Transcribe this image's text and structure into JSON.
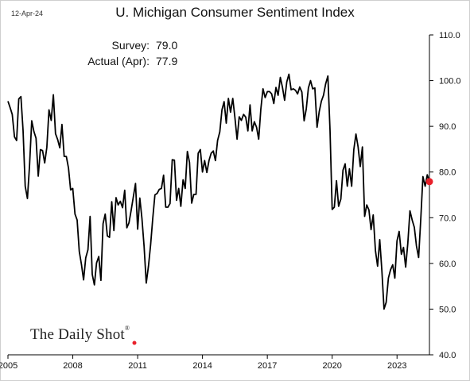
{
  "header": {
    "date": "12-Apr-24",
    "title": "U. Michigan Consumer Sentiment Index"
  },
  "annotations": {
    "survey_label": "Survey:",
    "survey_value": "79.0",
    "actual_label": "Actual (Apr):",
    "actual_value": "77.9"
  },
  "logo": {
    "text": "The Daily Shot",
    "mark": "®"
  },
  "colors": {
    "line": "#000000",
    "marker": "#e8202a",
    "logo_dot": "#e8202a"
  },
  "chart_data": {
    "type": "line",
    "title": "U. Michigan Consumer Sentiment Index",
    "xlabel": "",
    "ylabel": "",
    "ylim": [
      40,
      110
    ],
    "xlim": [
      2005.0,
      2024.5
    ],
    "y_ticks": [
      "40.0",
      "50.0",
      "60.0",
      "70.0",
      "80.0",
      "90.0",
      "100.0",
      "110.0"
    ],
    "x_ticks": [
      "2005",
      "2008",
      "2011",
      "2014",
      "2017",
      "2020",
      "2023"
    ],
    "y_axis_side": "right",
    "grid": false,
    "series": [
      {
        "values": [
          [
            2005.0,
            95.5
          ],
          [
            2005.1,
            94.1
          ],
          [
            2005.2,
            92.6
          ],
          [
            2005.3,
            87.7
          ],
          [
            2005.4,
            86.9
          ],
          [
            2005.5,
            96.0
          ],
          [
            2005.6,
            96.5
          ],
          [
            2005.7,
            89.1
          ],
          [
            2005.8,
            76.9
          ],
          [
            2005.9,
            74.2
          ],
          [
            2006.0,
            81.6
          ],
          [
            2006.1,
            91.2
          ],
          [
            2006.2,
            88.9
          ],
          [
            2006.3,
            87.4
          ],
          [
            2006.4,
            79.1
          ],
          [
            2006.5,
            84.9
          ],
          [
            2006.6,
            84.7
          ],
          [
            2006.7,
            82.0
          ],
          [
            2006.8,
            85.4
          ],
          [
            2006.9,
            93.6
          ],
          [
            2007.0,
            91.3
          ],
          [
            2007.1,
            96.9
          ],
          [
            2007.2,
            88.4
          ],
          [
            2007.3,
            87.1
          ],
          [
            2007.4,
            85.3
          ],
          [
            2007.5,
            90.4
          ],
          [
            2007.6,
            83.4
          ],
          [
            2007.7,
            83.4
          ],
          [
            2007.8,
            80.9
          ],
          [
            2007.9,
            76.1
          ],
          [
            2008.0,
            76.4
          ],
          [
            2008.1,
            70.8
          ],
          [
            2008.2,
            69.5
          ],
          [
            2008.3,
            62.6
          ],
          [
            2008.4,
            59.8
          ],
          [
            2008.5,
            56.4
          ],
          [
            2008.6,
            61.2
          ],
          [
            2008.7,
            63.0
          ],
          [
            2008.8,
            70.3
          ],
          [
            2008.9,
            57.6
          ],
          [
            2009.0,
            55.3
          ],
          [
            2009.1,
            60.1
          ],
          [
            2009.2,
            61.5
          ],
          [
            2009.3,
            56.3
          ],
          [
            2009.4,
            68.7
          ],
          [
            2009.5,
            70.8
          ],
          [
            2009.6,
            66.0
          ],
          [
            2009.7,
            65.7
          ],
          [
            2009.8,
            73.5
          ],
          [
            2009.9,
            67.2
          ],
          [
            2010.0,
            74.4
          ],
          [
            2010.1,
            72.8
          ],
          [
            2010.2,
            73.6
          ],
          [
            2010.3,
            72.2
          ],
          [
            2010.4,
            76.0
          ],
          [
            2010.5,
            67.8
          ],
          [
            2010.6,
            68.9
          ],
          [
            2010.7,
            71.6
          ],
          [
            2010.8,
            74.5
          ],
          [
            2010.9,
            77.5
          ],
          [
            2011.0,
            67.5
          ],
          [
            2011.1,
            74.3
          ],
          [
            2011.2,
            69.8
          ],
          [
            2011.3,
            63.7
          ],
          [
            2011.4,
            55.7
          ],
          [
            2011.5,
            59.4
          ],
          [
            2011.6,
            64.1
          ],
          [
            2011.7,
            69.9
          ],
          [
            2011.8,
            75.0
          ],
          [
            2011.9,
            75.3
          ],
          [
            2012.0,
            76.2
          ],
          [
            2012.1,
            76.4
          ],
          [
            2012.2,
            79.3
          ],
          [
            2012.3,
            72.3
          ],
          [
            2012.4,
            72.3
          ],
          [
            2012.5,
            73.1
          ],
          [
            2012.6,
            82.7
          ],
          [
            2012.7,
            82.6
          ],
          [
            2012.8,
            73.8
          ],
          [
            2012.9,
            76.4
          ],
          [
            2013.0,
            72.5
          ],
          [
            2013.1,
            78.3
          ],
          [
            2013.2,
            76.4
          ],
          [
            2013.3,
            84.5
          ],
          [
            2013.4,
            82.1
          ],
          [
            2013.5,
            73.2
          ],
          [
            2013.6,
            75.1
          ],
          [
            2013.7,
            75.1
          ],
          [
            2013.8,
            84.1
          ],
          [
            2013.9,
            84.9
          ],
          [
            2014.0,
            80.0
          ],
          [
            2014.1,
            82.5
          ],
          [
            2014.2,
            79.9
          ],
          [
            2014.3,
            82.5
          ],
          [
            2014.4,
            84.1
          ],
          [
            2014.5,
            84.6
          ],
          [
            2014.6,
            82.5
          ],
          [
            2014.7,
            86.9
          ],
          [
            2014.8,
            88.8
          ],
          [
            2014.9,
            93.6
          ],
          [
            2015.0,
            95.4
          ],
          [
            2015.1,
            90.7
          ],
          [
            2015.2,
            96.1
          ],
          [
            2015.3,
            93.1
          ],
          [
            2015.4,
            96.1
          ],
          [
            2015.5,
            91.9
          ],
          [
            2015.6,
            87.2
          ],
          [
            2015.7,
            92.1
          ],
          [
            2015.8,
            91.3
          ],
          [
            2015.9,
            92.6
          ],
          [
            2016.0,
            92.0
          ],
          [
            2016.1,
            89.0
          ],
          [
            2016.2,
            94.7
          ],
          [
            2016.3,
            89.0
          ],
          [
            2016.4,
            91.0
          ],
          [
            2016.5,
            89.8
          ],
          [
            2016.6,
            87.2
          ],
          [
            2016.7,
            93.8
          ],
          [
            2016.8,
            98.2
          ],
          [
            2016.9,
            96.3
          ],
          [
            2017.0,
            97.6
          ],
          [
            2017.1,
            97.6
          ],
          [
            2017.2,
            97.1
          ],
          [
            2017.3,
            95.0
          ],
          [
            2017.4,
            98.5
          ],
          [
            2017.5,
            96.8
          ],
          [
            2017.6,
            100.7
          ],
          [
            2017.7,
            98.5
          ],
          [
            2017.8,
            95.7
          ],
          [
            2017.9,
            99.7
          ],
          [
            2018.0,
            101.4
          ],
          [
            2018.1,
            98.0
          ],
          [
            2018.2,
            98.2
          ],
          [
            2018.3,
            97.9
          ],
          [
            2018.4,
            97.1
          ],
          [
            2018.5,
            98.6
          ],
          [
            2018.6,
            97.5
          ],
          [
            2018.7,
            91.2
          ],
          [
            2018.8,
            93.8
          ],
          [
            2018.9,
            98.4
          ],
          [
            2019.0,
            100.0
          ],
          [
            2019.1,
            98.2
          ],
          [
            2019.2,
            98.4
          ],
          [
            2019.3,
            89.8
          ],
          [
            2019.4,
            93.2
          ],
          [
            2019.5,
            95.5
          ],
          [
            2019.6,
            96.8
          ],
          [
            2019.7,
            99.3
          ],
          [
            2019.8,
            101.0
          ],
          [
            2019.9,
            89.1
          ],
          [
            2020.0,
            71.8
          ],
          [
            2020.1,
            72.3
          ],
          [
            2020.2,
            78.1
          ],
          [
            2020.3,
            72.5
          ],
          [
            2020.4,
            74.1
          ],
          [
            2020.5,
            80.4
          ],
          [
            2020.6,
            81.8
          ],
          [
            2020.7,
            76.9
          ],
          [
            2020.8,
            80.7
          ],
          [
            2020.9,
            76.9
          ],
          [
            2021.0,
            84.9
          ],
          [
            2021.1,
            88.3
          ],
          [
            2021.2,
            85.5
          ],
          [
            2021.3,
            81.2
          ],
          [
            2021.4,
            85.5
          ],
          [
            2021.5,
            70.3
          ],
          [
            2021.6,
            72.8
          ],
          [
            2021.7,
            71.7
          ],
          [
            2021.8,
            67.4
          ],
          [
            2021.9,
            70.6
          ],
          [
            2022.0,
            62.8
          ],
          [
            2022.1,
            59.4
          ],
          [
            2022.2,
            65.2
          ],
          [
            2022.3,
            58.4
          ],
          [
            2022.4,
            50.0
          ],
          [
            2022.5,
            51.5
          ],
          [
            2022.6,
            56.8
          ],
          [
            2022.7,
            58.6
          ],
          [
            2022.8,
            59.7
          ],
          [
            2022.9,
            56.8
          ],
          [
            2023.0,
            64.9
          ],
          [
            2023.1,
            67.0
          ],
          [
            2023.2,
            62.0
          ],
          [
            2023.3,
            63.5
          ],
          [
            2023.4,
            59.2
          ],
          [
            2023.5,
            64.4
          ],
          [
            2023.6,
            71.5
          ],
          [
            2023.7,
            69.5
          ],
          [
            2023.8,
            67.9
          ],
          [
            2023.9,
            63.8
          ],
          [
            2024.0,
            61.3
          ],
          [
            2024.1,
            69.7
          ],
          [
            2024.2,
            79.0
          ],
          [
            2024.3,
            76.9
          ],
          [
            2024.4,
            79.4
          ],
          [
            2024.5,
            77.9
          ]
        ]
      }
    ],
    "highlight_point": [
      2024.5,
      77.9
    ]
  }
}
